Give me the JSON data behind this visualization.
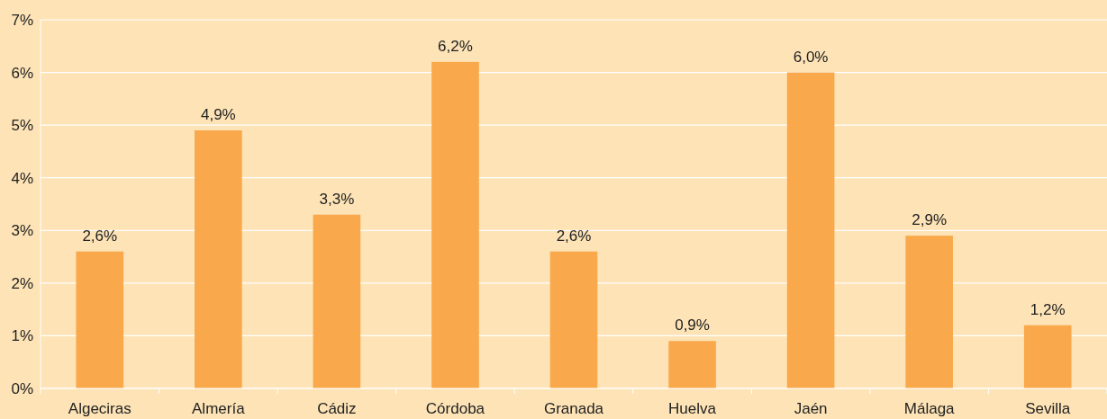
{
  "chart_data": {
    "type": "bar",
    "categories": [
      "Algeciras",
      "Almería",
      "Cádiz",
      "Córdoba",
      "Granada",
      "Huelva",
      "Jaén",
      "Málaga",
      "Sevilla"
    ],
    "values": [
      2.6,
      4.9,
      3.3,
      6.2,
      2.6,
      0.9,
      6.0,
      2.9,
      1.2
    ],
    "value_labels": [
      "2,6%",
      "4,9%",
      "3,3%",
      "6,2%",
      "2,6%",
      "0,9%",
      "6,0%",
      "2,9%",
      "1,2%"
    ],
    "color": "#f9a94b",
    "ylim": [
      0,
      7
    ],
    "yticks": [
      {
        "value": 0,
        "label": "0%"
      },
      {
        "value": 1,
        "label": "1%"
      },
      {
        "value": 2,
        "label": "2%"
      },
      {
        "value": 3,
        "label": "3%"
      },
      {
        "value": 4,
        "label": "4%"
      },
      {
        "value": 5,
        "label": "5%"
      },
      {
        "value": 6,
        "label": "6%"
      },
      {
        "value": 7,
        "label": "7%"
      }
    ],
    "grid": "y"
  }
}
